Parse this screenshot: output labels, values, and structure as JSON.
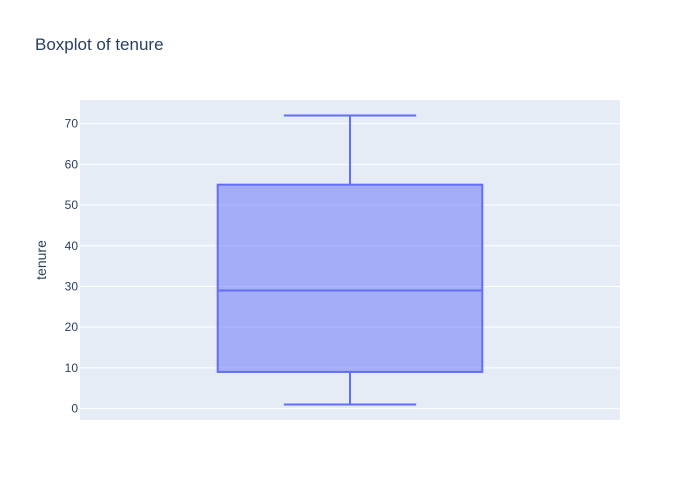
{
  "chart_data": {
    "type": "box",
    "title": "Boxplot of tenure",
    "xlabel": "",
    "ylabel": "tenure",
    "ylim": [
      -2.8,
      75.8
    ],
    "yticks": [
      0,
      10,
      20,
      30,
      40,
      50,
      60,
      70
    ],
    "grid": true,
    "series": [
      {
        "min": 1,
        "q1": 9,
        "median": 29,
        "q3": 55,
        "max": 72
      }
    ],
    "colors": {
      "plot_bg": "#e5ecf6",
      "grid": "#ffffff",
      "box_line": "#636efa",
      "box_fill": "#636efa",
      "text": "#2a3f5f"
    }
  }
}
